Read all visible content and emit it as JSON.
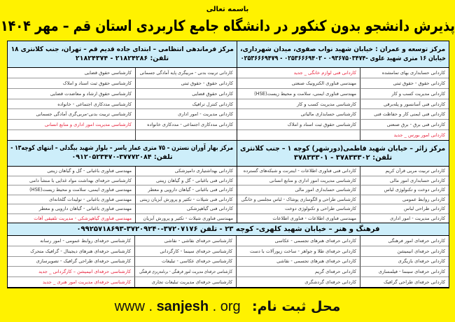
{
  "header": {
    "invocation": "باسمه تعالی",
    "title": "پذیرش دانشجو بدون کنکور در دانشگاه جامع کاربردی استان قم – مهر ۱۴۰۴"
  },
  "centers": [
    {
      "id": "tosee-omran",
      "lines": [
        "مرکز توسعه و عمران : خیابان شهید نواب صفوی، میدان شهرداری،",
        "خیابان ۱۶ متری شهید علوی -۰۹۳۶۷۵۰۳۴۷۴ - ۰۲۵۳۶۶۶۹۴۰۲ - ۰۲۵۳۶۶۶۹۴۷۹"
      ],
      "columns": [
        [
          {
            "text": "کاردانی حسابداری بهای تمامشده",
            "new": false
          },
          {
            "text": "کاردانی حقوق - حقوق ثبتی",
            "new": false
          },
          {
            "text": "کاردانی مدیریت کسب و کار",
            "new": false
          },
          {
            "text": "کاردانی فنی آسانسور و پله‌برقی",
            "new": false
          },
          {
            "text": "کاردانی فنی ایمنی کار و حفاظت فنی",
            "new": false
          },
          {
            "text": "کاردانی فنی برق - برق صنعتی",
            "new": false
          },
          {
            "text": "کاردانی امور بورس _ جدید",
            "new": true
          }
        ],
        [
          {
            "text": "کاردانی فنی لوازم خانگی _ جدید",
            "new": true
          },
          {
            "text": "مهندسی فناوری الکترونیک صنعتی",
            "new": false
          },
          {
            "text": "مهندسی فناوری ایمنی، سلامت و محیط زیست(HSE)",
            "new": false
          },
          {
            "text": "کارشناسی مدیریت کسب و کار",
            "new": false
          },
          {
            "text": "کارشناسی حسابداری مالیاتی",
            "new": false
          },
          {
            "text": "کارشناسی حقوق ثبت اسناد و املاک",
            "new": false
          },
          {
            "text": "",
            "new": false
          }
        ]
      ]
    },
    {
      "id": "farmandehi-entezami",
      "lines": [
        "مرکز فرماندهی انتظامی – ابتدای جاده قدیم قم – تهران، جنب کلانتری ۱۸",
        "تلفن: ۲۱۸۲۴۲۸۶ - ۲۱۸۲۴۳۷۴"
      ],
      "columns": [
        [
          {
            "text": "کاردانی تربیت بدنی - مربیگری پایه آمادگی جسمانی",
            "new": false
          },
          {
            "text": "کاردانی حقوق - حقوق ثبتی",
            "new": false
          },
          {
            "text": "کاردانی حقوق قضایی",
            "new": false
          },
          {
            "text": "کاردانی کنترل ترافیک",
            "new": false
          },
          {
            "text": "کاردانی مدیریت - امور اداری",
            "new": false
          },
          {
            "text": "کاردانی مددکاری اجتماعی - مددکاری خانواده",
            "new": false
          },
          {
            "text": "",
            "new": false
          }
        ],
        [
          {
            "text": "کارشناسی حقوق قضایی",
            "new": false
          },
          {
            "text": "کارشناسی حقوق ثبت اسناد و املاک",
            "new": false
          },
          {
            "text": "کارشناسی حقوق ارشاد و معاضدت قضایی",
            "new": false
          },
          {
            "text": "کارشناسی مددکاری اجتماعی - خانواده",
            "new": false
          },
          {
            "text": "کارشناسی تربیت بدنی-مربی‌گری آمادگی جسمانی",
            "new": false
          },
          {
            "text": "کارشناسی مدیریت امور اداری و منابع انسانی",
            "new": true
          },
          {
            "text": "",
            "new": false
          }
        ]
      ]
    },
    {
      "id": "zaer",
      "lines": [
        "مرکز زائر – خیابان شهید فاطمی(دورشهر) کوچه ۱ – جنب کلانتری",
        "تلفن: ۳۷۸۳۳۳۰۲ - ۳۷۸۳۳۳۰۱"
      ],
      "columns": [
        [
          {
            "text": "کاردانی تربیت مربی قرآن کریم",
            "new": false
          },
          {
            "text": "کاردانی حسابداری امور مالی",
            "new": false
          },
          {
            "text": "کاردانی دوخت و تکنولوژی لباس",
            "new": false
          },
          {
            "text": "کاردانی روابط عمومی",
            "new": false
          },
          {
            "text": "کاردانی طراحی لباس",
            "new": false
          },
          {
            "text": "کاردانی مدیریت - امور اداری",
            "new": false
          }
        ],
        [
          {
            "text": "کاردانی فنی فناوری اطلاعات - اینترنت و شبکه‌های گسترده",
            "new": false
          },
          {
            "text": "کارشناسی مدیریت امور اداری و منابع انسانی",
            "new": false
          },
          {
            "text": "کارشناسی حسابداری امور مالی",
            "new": false
          },
          {
            "text": "کارشناسی طراحی و الگوسازی پوشاک - لباس مجلسی و خانگی",
            "new": false
          },
          {
            "text": "کارشناسی طراحی و تکنولوژی دوخت",
            "new": false
          },
          {
            "text": "مهندسی فناوری اطلاعات - فناوری اطلاعات",
            "new": false
          }
        ]
      ]
    },
    {
      "id": "bahar-avaran-nastaran",
      "lines": [
        "مرکز بهار آوران نسترن – ۷۵ متری عمار یاسر – بلوار شهید بیگدلی – انتهای کوچه۱۳ -",
        "تلفن: ۳۷۷۷۲۰۸۴-۰۹۱۲۰۵۲۳۴۷۰"
      ],
      "columns": [
        [
          {
            "text": "کاردانی بهداشتیاری دامپزشکی",
            "new": false
          },
          {
            "text": "کاردانی فنی باغبانی - گل و گیاهان زینتی",
            "new": false
          },
          {
            "text": "کاردانی فنی باغبانی - گیاهان دارویی و معطر",
            "new": false
          },
          {
            "text": "کاردانی فنی شیلات - تکثیر و پرورش آبزیان زینتی",
            "new": false
          },
          {
            "text": "کاردانی فنی گیاهپزشکی",
            "new": false
          },
          {
            "text": "مهندسی فناوری شیلات - تکثیر و پرورش آبزیان",
            "new": false
          }
        ],
        [
          {
            "text": "مهندسی فناوری باغبانی - گل و گیاهان زینتی",
            "new": false
          },
          {
            "text": "کارشناسی حرفه‌ای بهداشت مواد غذایی با منشأ دامی",
            "new": false
          },
          {
            "text": "مهندسی فناوری ایمنی، سلامت و محیط زیست(HSE)",
            "new": false
          },
          {
            "text": "مهندسی فناوری باغبانی - تولیدات گلخانه‌ای",
            "new": false
          },
          {
            "text": "مهندسی فناوری باغبانی - گیاهان دارویی و معطر",
            "new": false
          },
          {
            "text": "مهندسی فناوری گیاهپزشکی - مدیریت تلفیقی آفات",
            "new": true
          }
        ]
      ]
    },
    {
      "id": "farhang-honar",
      "lines": [
        "فرهنگ و هنر – خیابان شهید کلهری- کوچه ۲۳  -  تلفن ۳۷۲۰۷۱۷۶-۳۷۲۰۹۲۴۰-۰۹۹۲۵۷۱۸۶۹۳"
      ],
      "columns": [
        [
          {
            "text": "کاردانی حرفه‌ای امور فرهنگی",
            "new": false
          },
          {
            "text": "کاردانی حرفه‌ای انیمیشن",
            "new": false
          },
          {
            "text": "کاردانی حرفه‌ای بازیگری",
            "new": false
          },
          {
            "text": "کاردانی حرفه‌ای سینما - فیلمسازی",
            "new": false
          },
          {
            "text": "کاردانی حرفه‌ای طراحی گرافیک",
            "new": false
          }
        ],
        [
          {
            "text": "کاردانی حرفه‌ای هنرهای تجسمی - عکاسی",
            "new": false
          },
          {
            "text": "کاردانی حرفه‌ای طلا و جواهر - ساخت زیورآلات با دست",
            "new": false
          },
          {
            "text": "کاردانی حرفه‌ای هنرهای تجسمی - نقاشی",
            "new": false
          },
          {
            "text": "کاردانی حرفه‌ای گریم",
            "new": false
          },
          {
            "text": "کاردانی حرفه‌ای گردشگری",
            "new": false
          }
        ],
        [
          {
            "text": "کارشناسی حرفه‌ای نقاشی - نقاشی",
            "new": false
          },
          {
            "text": "کارشناسی حرفه‌ای سینما - کارگردانی",
            "new": false
          },
          {
            "text": "کارشناسی حرفه‌ای عکاسی - تبلیغات",
            "new": false
          },
          {
            "text": "کارشناسی حرفه‌ای مدیریت امور فرهنگی - برنامه‌ریزی فرهنگی",
            "new": false
          },
          {
            "text": "کارشناسی حرفه‌ای مدیریت تبلیغات تجاری",
            "new": false
          }
        ],
        [
          {
            "text": "کارشناسی حرفه‌ای روابط عمومی - امور رسانه",
            "new": false
          },
          {
            "text": "کارشناسی حرفه‌ای هنرهای دیجیتال - گرافیک متحرک",
            "new": false
          },
          {
            "text": "کارشناسی حرفه‌ای طراحی گرافیک - تصویرسازی",
            "new": false
          },
          {
            "text": "کارشناسی حرفه‌ای انیمیشن – کارگردانی _ جدید",
            "new": true
          },
          {
            "text": "کارشناسی حرفه‌ای مدیریت امور هنری _ جدید",
            "new": true
          }
        ]
      ]
    }
  ],
  "footer": {
    "label": "محل ثبت نام:",
    "site_prefix": "www . ",
    "site_main": "sanjesh",
    "site_suffix": " . org"
  },
  "colors": {
    "background": "#fff200",
    "header_band": "#cdeefa",
    "new_program": "#e8203a"
  }
}
